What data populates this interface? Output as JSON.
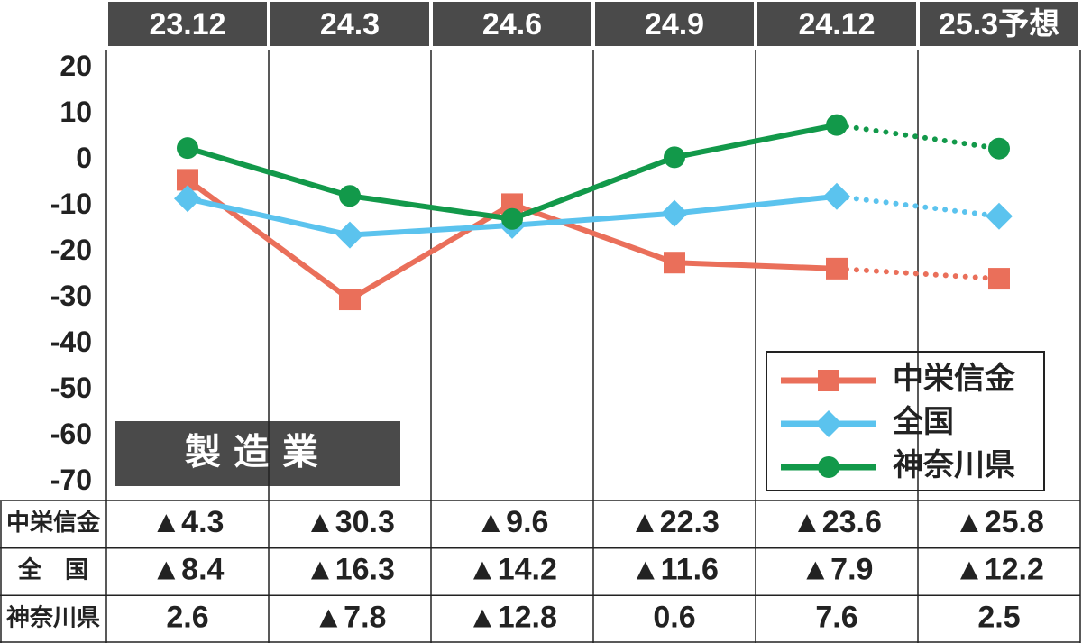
{
  "chart_data": {
    "type": "line",
    "title": "製造業",
    "categories": [
      "23.12",
      "24.3",
      "24.6",
      "24.9",
      "24.12",
      "25.3予想"
    ],
    "ylim": [
      -74,
      24
    ],
    "yticks": [
      20,
      10,
      0,
      -10,
      -20,
      -30,
      -40,
      -50,
      -60,
      -70
    ],
    "dashed_from_index": 4,
    "legend": "lower right",
    "series": [
      {
        "name": "中栄信金",
        "color": "#ea6f5a",
        "marker": "square",
        "values": [
          -4.3,
          -30.3,
          -9.6,
          -22.3,
          -23.6,
          -25.8
        ],
        "value_labels": [
          "▲4.3",
          "▲30.3",
          "▲9.6",
          "▲22.3",
          "▲23.6",
          "▲25.8"
        ]
      },
      {
        "name": "全国",
        "color": "#5bc3ee",
        "marker": "diamond",
        "values": [
          -8.4,
          -16.3,
          -14.2,
          -11.6,
          -7.9,
          -12.2
        ],
        "value_labels": [
          "▲8.4",
          "▲16.3",
          "▲14.2",
          "▲11.6",
          "▲7.9",
          "▲12.2"
        ]
      },
      {
        "name": "神奈川県",
        "color": "#12994a",
        "marker": "circle",
        "values": [
          2.6,
          -7.8,
          -12.8,
          0.6,
          7.6,
          2.5
        ],
        "value_labels": [
          "2.6",
          "▲7.8",
          "▲12.8",
          "0.6",
          "7.6",
          "2.5"
        ]
      }
    ],
    "table_row_labels": [
      "中栄信金",
      "全　国",
      "神奈川県"
    ]
  }
}
